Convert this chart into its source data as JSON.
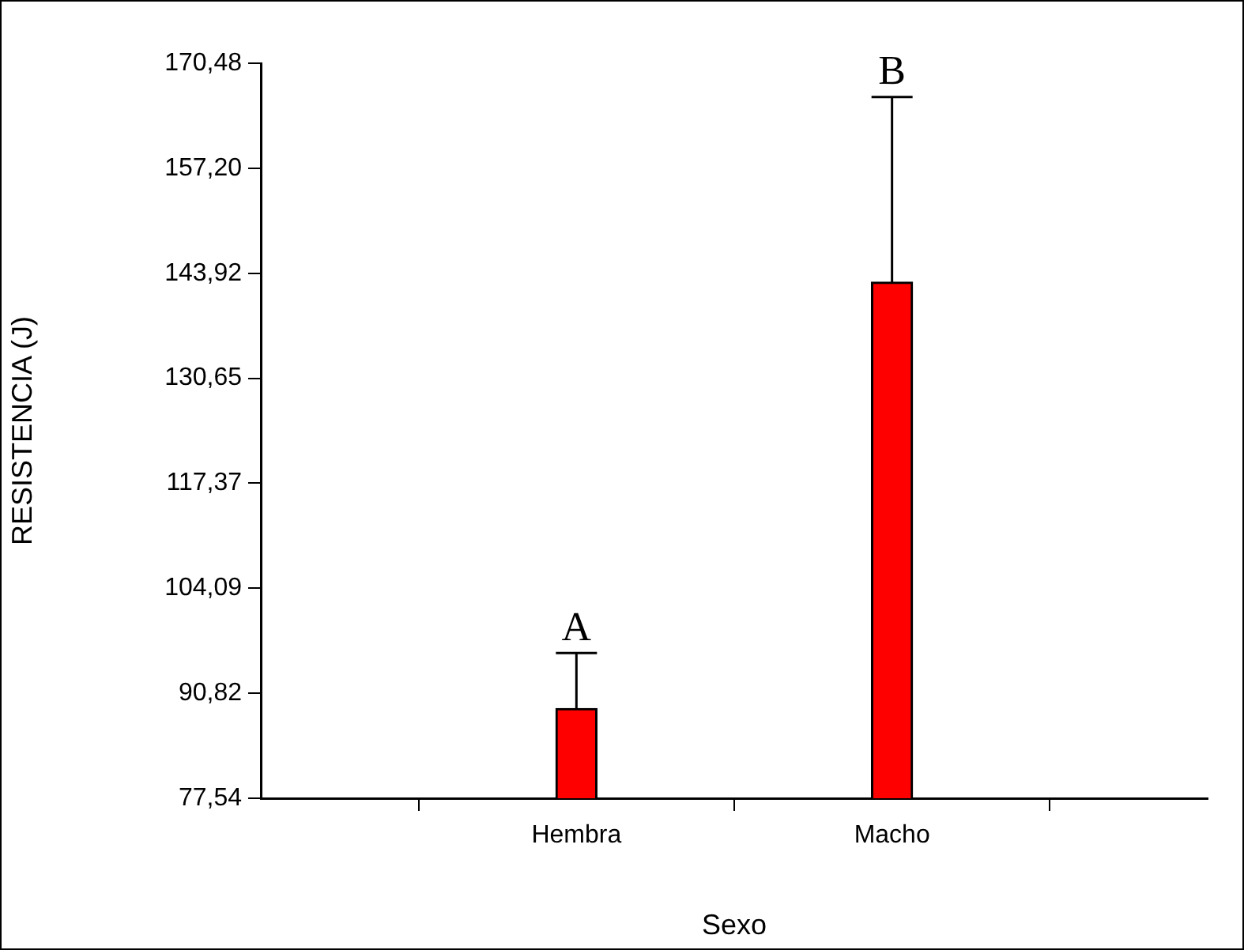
{
  "chart_data": {
    "type": "bar",
    "xlabel": "Sexo",
    "ylabel": "RESISTENCIA (J)",
    "categories": [
      "Hembra",
      "Macho"
    ],
    "values": [
      88.9,
      142.8
    ],
    "color": "#ff0000",
    "errors": [
      [
        88.9,
        95.9
      ],
      [
        142.8,
        166.2
      ]
    ],
    "ylim": [
      77.54,
      170.48
    ],
    "yticks": [
      {
        "value": 77.54,
        "label": "77,54"
      },
      {
        "value": 90.82,
        "label": "90,82"
      },
      {
        "value": 104.09,
        "label": "104,09"
      },
      {
        "value": 117.37,
        "label": "117,37"
      },
      {
        "value": 130.65,
        "label": "130,65"
      },
      {
        "value": 143.92,
        "label": "143,92"
      },
      {
        "value": 157.2,
        "label": "157,20"
      },
      {
        "value": 170.48,
        "label": "170,48"
      }
    ],
    "grid": false,
    "legend": false,
    "annotations": [
      "A",
      "B"
    ]
  }
}
